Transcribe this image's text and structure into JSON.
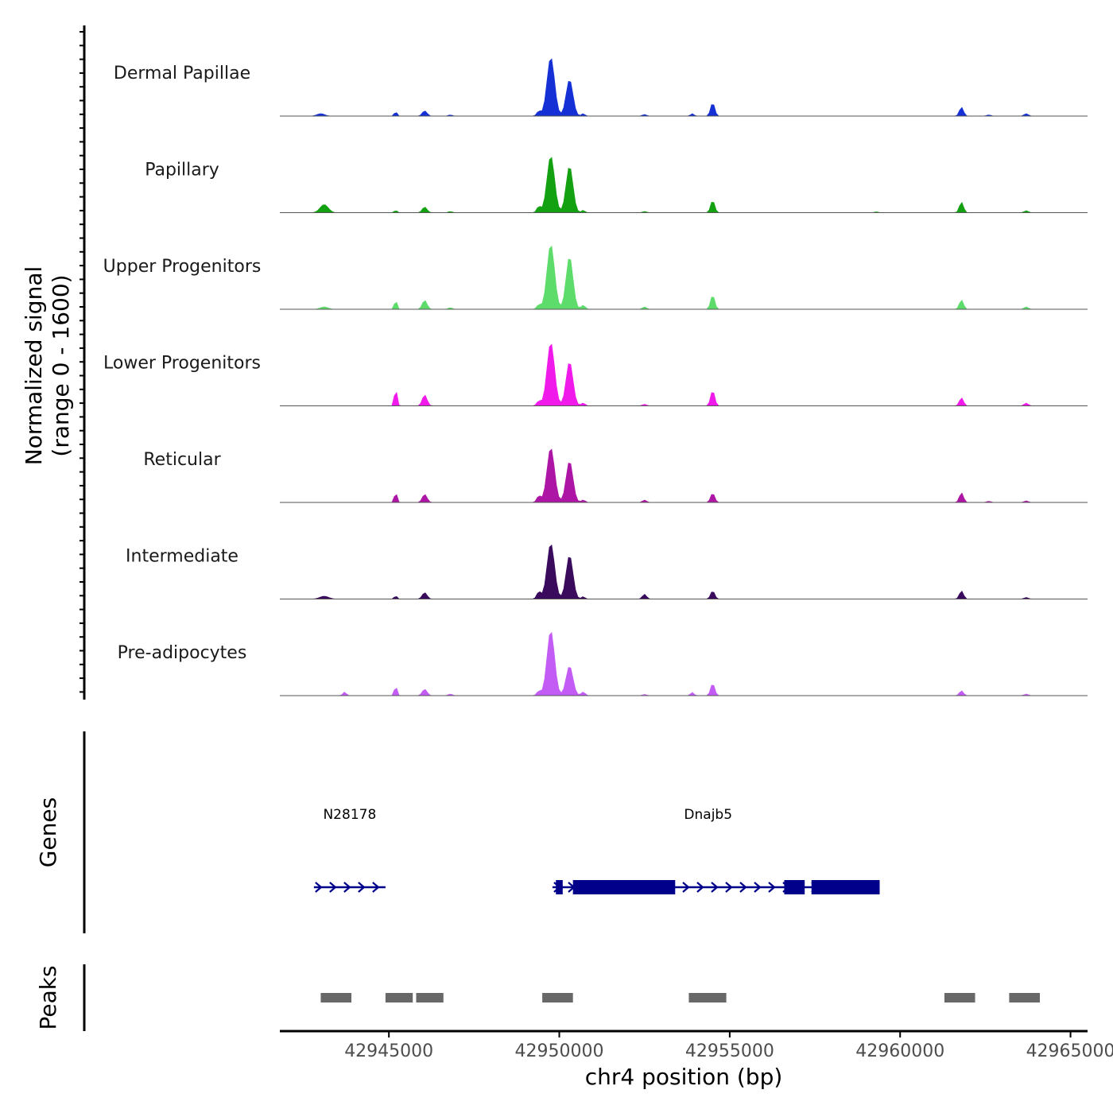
{
  "chart_data": {
    "type": "area",
    "title": "",
    "ylabel": "Normalized signal",
    "ylabel_range": "(range 0 - 1600)",
    "ylim": [
      0,
      1600
    ],
    "xlabel": "chr4 position (bp)",
    "xlim": [
      42941800,
      42965500
    ],
    "x_ticks": [
      42945000,
      42950000,
      42955000,
      42960000,
      42965000
    ],
    "x_tick_labels": [
      "42945000",
      "42950000",
      "42955000",
      "42960000",
      "42965000"
    ],
    "grid": false,
    "track_type": "coverage",
    "series": [
      {
        "name": "Dermal Papillae",
        "color": "#1531d6",
        "peaks": [
          [
            42943000,
            60,
            110
          ],
          [
            42945200,
            110,
            40
          ],
          [
            42946050,
            130,
            70
          ],
          [
            42946800,
            30,
            60
          ],
          [
            42949400,
            120,
            60
          ],
          [
            42949750,
            1450,
            110
          ],
          [
            42950300,
            900,
            100
          ],
          [
            42950700,
            60,
            50
          ],
          [
            42952500,
            40,
            60
          ],
          [
            42953900,
            60,
            50
          ],
          [
            42954500,
            330,
            60
          ],
          [
            42961800,
            220,
            60
          ],
          [
            42962600,
            30,
            60
          ],
          [
            42963700,
            60,
            60
          ]
        ]
      },
      {
        "name": "Papillary",
        "color": "#13a011",
        "peaks": [
          [
            42943100,
            200,
            120
          ],
          [
            42945200,
            60,
            40
          ],
          [
            42946050,
            140,
            70
          ],
          [
            42946800,
            30,
            60
          ],
          [
            42949400,
            150,
            60
          ],
          [
            42949750,
            1400,
            110
          ],
          [
            42950300,
            1150,
            100
          ],
          [
            42950700,
            60,
            50
          ],
          [
            42952500,
            30,
            60
          ],
          [
            42954500,
            300,
            60
          ],
          [
            42959300,
            20,
            60
          ],
          [
            42961800,
            260,
            60
          ],
          [
            42963700,
            50,
            60
          ]
        ]
      },
      {
        "name": "Upper Progenitors",
        "color": "#5edc6b",
        "peaks": [
          [
            42943100,
            60,
            110
          ],
          [
            42945200,
            220,
            40
          ],
          [
            42946050,
            220,
            70
          ],
          [
            42946800,
            40,
            60
          ],
          [
            42949400,
            110,
            60
          ],
          [
            42949750,
            1600,
            110
          ],
          [
            42950300,
            1300,
            100
          ],
          [
            42950700,
            100,
            60
          ],
          [
            42952500,
            60,
            60
          ],
          [
            42954500,
            350,
            60
          ],
          [
            42961800,
            230,
            60
          ],
          [
            42963700,
            60,
            60
          ]
        ]
      },
      {
        "name": "Lower Progenitors",
        "color": "#f01bea",
        "peaks": [
          [
            42945200,
            430,
            40
          ],
          [
            42946050,
            270,
            70
          ],
          [
            42949400,
            120,
            60
          ],
          [
            42949750,
            1560,
            110
          ],
          [
            42950300,
            1090,
            100
          ],
          [
            42950700,
            70,
            60
          ],
          [
            42952500,
            40,
            60
          ],
          [
            42954500,
            380,
            60
          ],
          [
            42961800,
            200,
            60
          ],
          [
            42963700,
            70,
            60
          ]
        ]
      },
      {
        "name": "Reticular",
        "color": "#ad16a5",
        "peaks": [
          [
            42945200,
            250,
            40
          ],
          [
            42946050,
            200,
            70
          ],
          [
            42949400,
            160,
            60
          ],
          [
            42949750,
            1350,
            110
          ],
          [
            42950300,
            1020,
            100
          ],
          [
            42950700,
            60,
            60
          ],
          [
            42952500,
            60,
            60
          ],
          [
            42954500,
            230,
            60
          ],
          [
            42961800,
            240,
            60
          ],
          [
            42962600,
            30,
            60
          ],
          [
            42963700,
            40,
            60
          ]
        ]
      },
      {
        "name": "Intermediate",
        "color": "#3a0a5c",
        "peaks": [
          [
            42943100,
            70,
            130
          ],
          [
            42945200,
            80,
            40
          ],
          [
            42946050,
            160,
            70
          ],
          [
            42949400,
            180,
            60
          ],
          [
            42949750,
            1370,
            110
          ],
          [
            42950300,
            1080,
            100
          ],
          [
            42950700,
            60,
            50
          ],
          [
            42952500,
            120,
            60
          ],
          [
            42954500,
            200,
            60
          ],
          [
            42961800,
            200,
            60
          ],
          [
            42963700,
            40,
            60
          ]
        ]
      },
      {
        "name": "Pre-adipocytes",
        "color": "#c35cf5",
        "peaks": [
          [
            42943700,
            90,
            50
          ],
          [
            42945200,
            240,
            40
          ],
          [
            42946050,
            160,
            70
          ],
          [
            42946800,
            40,
            60
          ],
          [
            42949400,
            110,
            60
          ],
          [
            42949750,
            1600,
            110
          ],
          [
            42950300,
            730,
            100
          ],
          [
            42950700,
            90,
            60
          ],
          [
            42952500,
            30,
            60
          ],
          [
            42953900,
            80,
            50
          ],
          [
            42954500,
            300,
            60
          ],
          [
            42961800,
            120,
            60
          ],
          [
            42963700,
            40,
            60
          ]
        ]
      }
    ],
    "genes_panel": {
      "title": "Genes",
      "color": "#00008b",
      "genes": [
        {
          "name": "N28178",
          "start": 42942800,
          "end": 42944900,
          "strand": "+",
          "exons": []
        },
        {
          "name": "Dnajb5",
          "start": 42949800,
          "end": 42959400,
          "strand": "+",
          "exons": [
            [
              42949900,
              42950100
            ],
            [
              42950400,
              42953400
            ],
            [
              42956600,
              42957200
            ],
            [
              42957400,
              42959400
            ]
          ]
        }
      ]
    },
    "peaks_panel": {
      "title": "Peaks",
      "color": "#686868",
      "regions": [
        [
          42943000,
          42943900
        ],
        [
          42944900,
          42945700
        ],
        [
          42945800,
          42946600
        ],
        [
          42949500,
          42950400
        ],
        [
          42953800,
          42954900
        ],
        [
          42961300,
          42962200
        ],
        [
          42963200,
          42964100
        ]
      ]
    }
  }
}
